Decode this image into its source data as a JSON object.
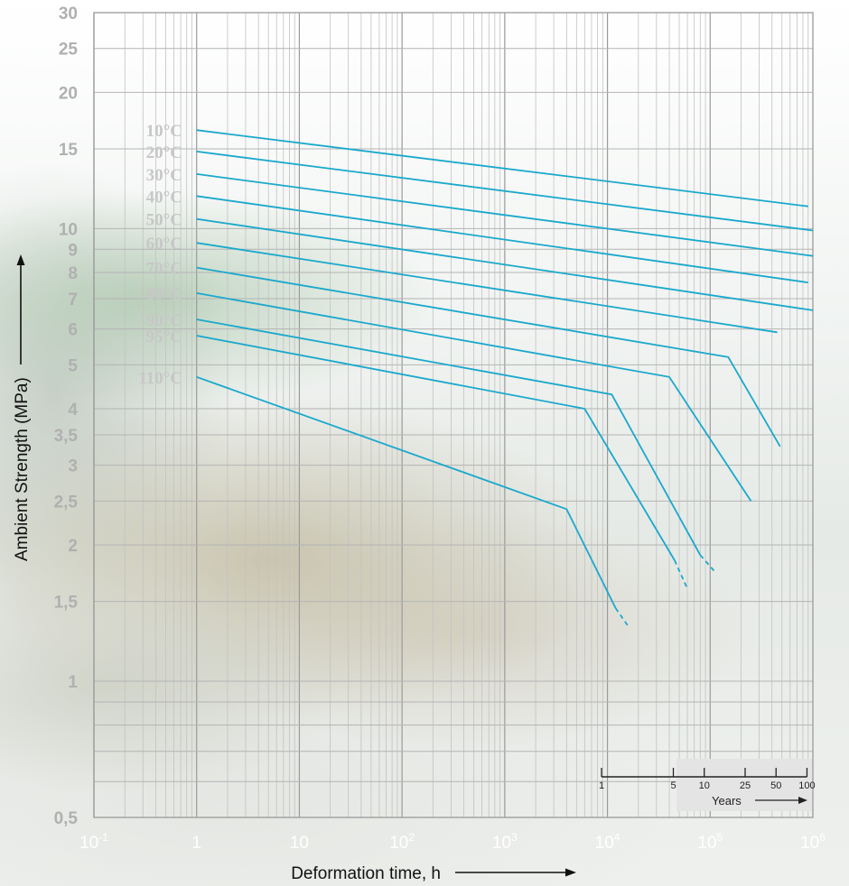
{
  "chart_data": {
    "type": "line",
    "xlabel": "Deformation time, h",
    "ylabel": "Ambient Strength (MPa)",
    "x_scale": "log",
    "y_scale": "log",
    "xlim": [
      0.1,
      1000000
    ],
    "ylim": [
      0.5,
      30
    ],
    "grid": true,
    "x_ticks": [
      {
        "base": "10",
        "exp": "-1"
      },
      {
        "base": "1",
        "exp": ""
      },
      {
        "base": "10",
        "exp": ""
      },
      {
        "base": "10",
        "exp": "2"
      },
      {
        "base": "10",
        "exp": "3"
      },
      {
        "base": "10",
        "exp": "4"
      },
      {
        "base": "10",
        "exp": "5"
      },
      {
        "base": "10",
        "exp": "6"
      }
    ],
    "y_ticks": [
      "0,5",
      "1",
      "1,5",
      "2",
      "2,5",
      "3",
      "3,5",
      "4",
      "5",
      "6",
      "7",
      "8",
      "9",
      "10",
      "15",
      "20",
      "25",
      "30"
    ],
    "series": [
      {
        "name": "10°C",
        "points": [
          [
            1,
            16.5
          ],
          [
            900000,
            11.2
          ]
        ]
      },
      {
        "name": "20°C",
        "points": [
          [
            1,
            14.8
          ],
          [
            1000000,
            9.9
          ]
        ]
      },
      {
        "name": "30°C",
        "points": [
          [
            1,
            13.2
          ],
          [
            1000000,
            8.7
          ]
        ]
      },
      {
        "name": "40°C",
        "points": [
          [
            1,
            11.8
          ],
          [
            900000,
            7.6
          ]
        ]
      },
      {
        "name": "50°C",
        "points": [
          [
            1,
            10.5
          ],
          [
            1000000,
            6.6
          ]
        ]
      },
      {
        "name": "60°C",
        "points": [
          [
            1,
            9.3
          ],
          [
            450000,
            5.9
          ]
        ]
      },
      {
        "name": "70°C",
        "points": [
          [
            1,
            8.2
          ],
          [
            150000,
            5.2
          ],
          [
            480000,
            3.3
          ]
        ]
      },
      {
        "name": "80°C",
        "points": [
          [
            1,
            7.2
          ],
          [
            40000,
            4.7
          ],
          [
            250000,
            2.5
          ]
        ]
      },
      {
        "name": "90°C",
        "points": [
          [
            1,
            6.3
          ],
          [
            11000,
            4.3
          ],
          [
            80000,
            1.9
          ]
        ],
        "dashed_tail": [
          [
            80000,
            1.9
          ],
          [
            110000,
            1.75
          ]
        ]
      },
      {
        "name": "95°C",
        "points": [
          [
            1,
            5.8
          ],
          [
            6000,
            4.0
          ],
          [
            45000,
            1.85
          ]
        ],
        "dashed_tail": [
          [
            45000,
            1.85
          ],
          [
            60000,
            1.6
          ]
        ]
      },
      {
        "name": "110°C",
        "points": [
          [
            1,
            4.7
          ],
          [
            4000,
            2.4
          ],
          [
            12000,
            1.45
          ]
        ],
        "dashed_tail": [
          [
            12000,
            1.45
          ],
          [
            16000,
            1.32
          ]
        ]
      }
    ],
    "line_color": "#1aa8cc",
    "inset": {
      "ticks": [
        "1",
        "5",
        "10",
        "25",
        "50",
        "100"
      ],
      "label": "Years"
    }
  }
}
